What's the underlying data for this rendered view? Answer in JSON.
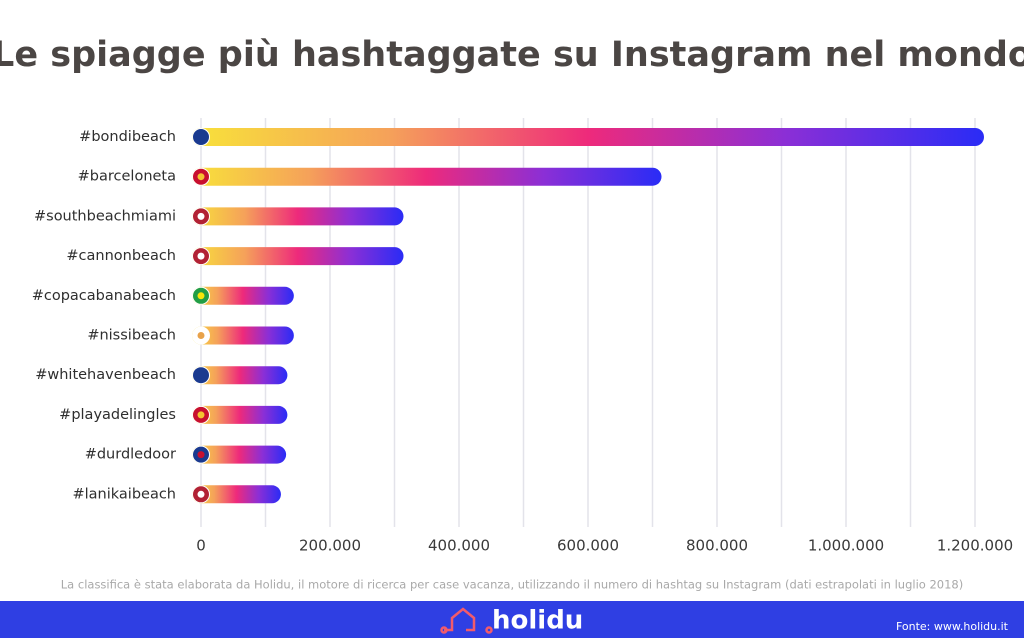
{
  "chart_data": {
    "type": "bar",
    "orientation": "horizontal",
    "title": "Le spiagge più hashtaggate su Instagram nel mondo",
    "categories": [
      "#bondibeach",
      "#barceloneta",
      "#southbeachmiami",
      "#cannonbeach",
      "#copacabanabeach",
      "#nissibeach",
      "#whitehavenbeach",
      "#playadelingles",
      "#durdledoor",
      "#lanikaibeach"
    ],
    "values": [
      1200000,
      700000,
      300000,
      300000,
      130000,
      130000,
      120000,
      120000,
      118000,
      110000
    ],
    "xlim": [
      0,
      1200000
    ],
    "xticks": [
      0,
      {
        "value": 200000,
        "label": "200.000"
      },
      {
        "value": 400000,
        "label": "400.000"
      },
      {
        "value": 600000,
        "label": "600.000"
      },
      {
        "value": 800000,
        "label": "800.000"
      },
      {
        "value": 1000000,
        "label": "1.000.000"
      },
      {
        "value": 1200000,
        "label": "1.200.000"
      }
    ],
    "xgrid_minor": [
      100000,
      300000,
      500000,
      700000,
      900000,
      1100000
    ],
    "grid": true,
    "gradient": [
      "#f8e23a",
      "#f5a15a",
      "#ee2a7b",
      "#8b2fd6",
      "#2a2cf6"
    ]
  },
  "note": "La classifica è stata elaborata da Holidu, il motore di ricerca per case vacanza, utilizzando il numero di hashtag su Instagram (dati estrapolati in luglio 2018)",
  "footer": {
    "logo": "holidu",
    "source": "Fonte: www.holidu.it"
  }
}
